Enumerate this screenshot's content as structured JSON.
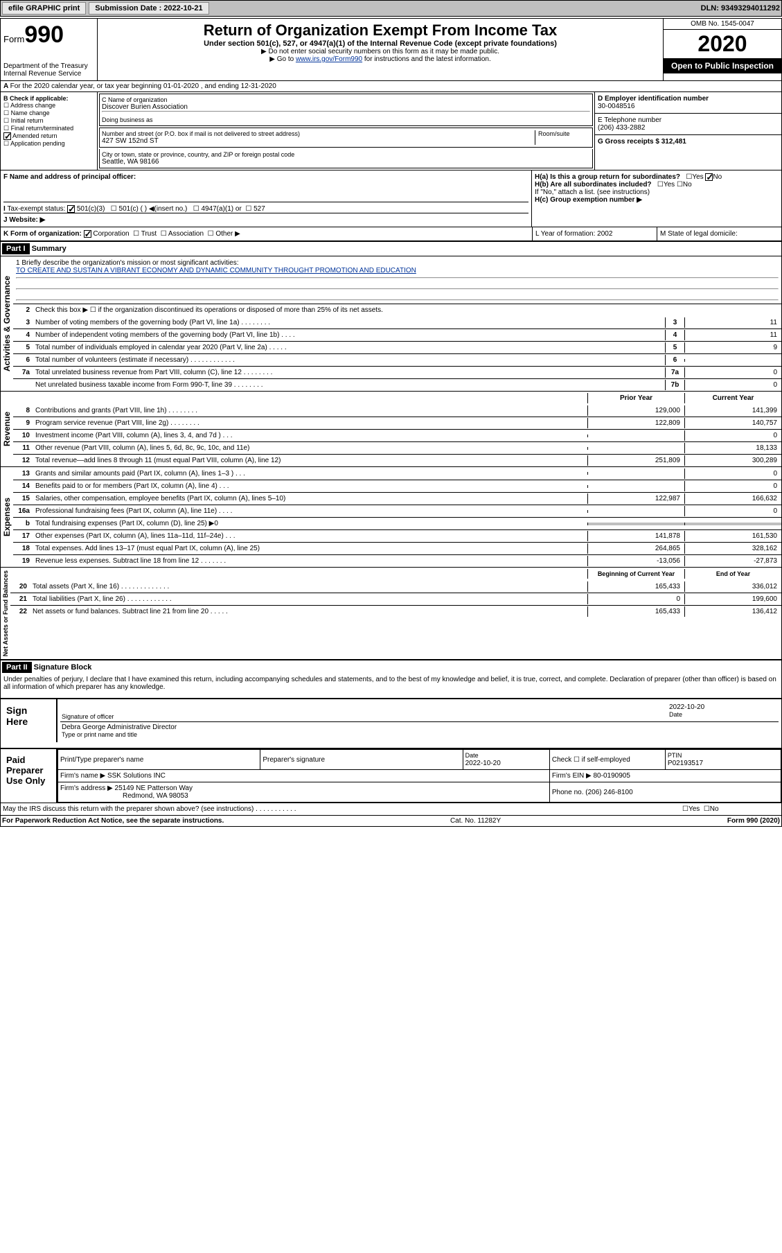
{
  "topbar": {
    "efile": "efile GRAPHIC print",
    "submission_label": "Submission Date : 2022-10-21",
    "dln": "DLN: 93493294011292"
  },
  "header": {
    "form_label": "Form",
    "form_number": "990",
    "dept": "Department of the Treasury",
    "irs": "Internal Revenue Service",
    "title": "Return of Organization Exempt From Income Tax",
    "subtitle": "Under section 501(c), 527, or 4947(a)(1) of the Internal Revenue Code (except private foundations)",
    "note1": "▶ Do not enter social security numbers on this form as it may be made public.",
    "note2_pre": "▶ Go to ",
    "note2_link": "www.irs.gov/Form990",
    "note2_post": " for instructions and the latest information.",
    "omb": "OMB No. 1545-0047",
    "year": "2020",
    "inspect": "Open to Public Inspection"
  },
  "section_a": {
    "tax_year": "For the 2020 calendar year, or tax year beginning 01-01-2020   , and ending 12-31-2020",
    "check_label": "B Check if applicable:",
    "checks": [
      "Address change",
      "Name change",
      "Initial return",
      "Final return/terminated",
      "Amended return",
      "Application pending"
    ],
    "name_label": "C Name of organization",
    "org_name": "Discover Burien Association",
    "dba_label": "Doing business as",
    "addr_label": "Number and street (or P.O. box if mail is not delivered to street address)",
    "room_label": "Room/suite",
    "address": "427 SW 152nd ST",
    "city_label": "City or town, state or province, country, and ZIP or foreign postal code",
    "city": "Seattle, WA  98166",
    "ein_label": "D Employer identification number",
    "ein": "30-0048516",
    "phone_label": "E Telephone number",
    "phone": "(206) 433-2882",
    "gross_label": "G Gross receipts $ 312,481",
    "officer_label": "F  Name and address of principal officer:",
    "ha_label": "H(a)  Is this a group return for subordinates?",
    "hb_label": "H(b)  Are all subordinates included?",
    "hb_note": "If \"No,\" attach a list. (see instructions)",
    "hc_label": "H(c)  Group exemption number ▶",
    "tax_exempt_label": "Tax-exempt status:",
    "tax_501c3": "501(c)(3)",
    "tax_501c": "501(c) (  ) ◀(insert no.)",
    "tax_4947": "4947(a)(1) or",
    "tax_527": "527",
    "website_label": "J  Website: ▶",
    "form_org_label": "K Form of organization:",
    "form_org_opts": [
      "Corporation",
      "Trust",
      "Association",
      "Other ▶"
    ],
    "year_formation_label": "L Year of formation: 2002",
    "state_label": "M State of legal domicile:"
  },
  "part1": {
    "header": "Part I",
    "title": "Summary",
    "q1_label": "1  Briefly describe the organization's mission or most significant activities:",
    "mission": "TO CREATE AND SUSTAIN A VIBRANT ECONOMY AND DYNAMIC COMMUNITY THROUGHT PROMOTION AND EDUCATION",
    "q2": "Check this box ▶ ☐  if the organization discontinued its operations or disposed of more than 25% of its net assets.",
    "vert_gov": "Activities & Governance",
    "vert_rev": "Revenue",
    "vert_exp": "Expenses",
    "vert_net": "Net Assets or Fund Balances",
    "lines_gov": [
      {
        "n": "3",
        "t": "Number of voting members of the governing body (Part VI, line 1a)   .    .    .    .    .    .    .    .",
        "b": "3",
        "v": "11"
      },
      {
        "n": "4",
        "t": "Number of independent voting members of the governing body (Part VI, line 1b)   .    .    .    .",
        "b": "4",
        "v": "11"
      },
      {
        "n": "5",
        "t": "Total number of individuals employed in calendar year 2020 (Part V, line 2a)   .    .    .    .    .",
        "b": "5",
        "v": "9"
      },
      {
        "n": "6",
        "t": "Total number of volunteers (estimate if necessary)   .    .    .    .    .    .    .    .    .    .    .    .",
        "b": "6",
        "v": ""
      },
      {
        "n": "7a",
        "t": "Total unrelated business revenue from Part VIII, column (C), line 12   .    .    .    .    .    .    .    .",
        "b": "7a",
        "v": "0"
      },
      {
        "n": "",
        "t": "Net unrelated business taxable income from Form 990-T, line 39   .    .    .    .    .    .    .    .",
        "b": "7b",
        "v": "0"
      }
    ],
    "col_prior": "Prior Year",
    "col_current": "Current Year",
    "lines_rev": [
      {
        "n": "8",
        "t": "Contributions and grants (Part VIII, line 1h)   .    .    .    .    .    .    .    .",
        "p": "129,000",
        "c": "141,399"
      },
      {
        "n": "9",
        "t": "Program service revenue (Part VIII, line 2g)   .    .    .    .    .    .    .    .",
        "p": "122,809",
        "c": "140,757"
      },
      {
        "n": "10",
        "t": "Investment income (Part VIII, column (A), lines 3, 4, and 7d )   .    .    .",
        "p": "",
        "c": "0"
      },
      {
        "n": "11",
        "t": "Other revenue (Part VIII, column (A), lines 5, 6d, 8c, 9c, 10c, and 11e)",
        "p": "",
        "c": "18,133"
      },
      {
        "n": "12",
        "t": "Total revenue—add lines 8 through 11 (must equal Part VIII, column (A), line 12)",
        "p": "251,809",
        "c": "300,289"
      }
    ],
    "lines_exp": [
      {
        "n": "13",
        "t": "Grants and similar amounts paid (Part IX, column (A), lines 1–3 )   .    .    .",
        "p": "",
        "c": "0"
      },
      {
        "n": "14",
        "t": "Benefits paid to or for members (Part IX, column (A), line 4)   .    .    .",
        "p": "",
        "c": "0"
      },
      {
        "n": "15",
        "t": "Salaries, other compensation, employee benefits (Part IX, column (A), lines 5–10)",
        "p": "122,987",
        "c": "166,632"
      },
      {
        "n": "16a",
        "t": "Professional fundraising fees (Part IX, column (A), line 11e)   .    .    .    .",
        "p": "",
        "c": "0"
      },
      {
        "n": "b",
        "t": "Total fundraising expenses (Part IX, column (D), line 25) ▶0",
        "p": "SHADE",
        "c": "SHADE"
      },
      {
        "n": "17",
        "t": "Other expenses (Part IX, column (A), lines 11a–11d, 11f–24e)   .    .    .",
        "p": "141,878",
        "c": "161,530"
      },
      {
        "n": "18",
        "t": "Total expenses. Add lines 13–17 (must equal Part IX, column (A), line 25)",
        "p": "264,865",
        "c": "328,162"
      },
      {
        "n": "19",
        "t": "Revenue less expenses. Subtract line 18 from line 12   .    .    .    .    .    .    .",
        "p": "-13,056",
        "c": "-27,873"
      }
    ],
    "col_begin": "Beginning of Current Year",
    "col_end": "End of Year",
    "lines_net": [
      {
        "n": "20",
        "t": "Total assets (Part X, line 16)   .    .    .    .    .    .    .    .    .    .    .    .    .",
        "p": "165,433",
        "c": "336,012"
      },
      {
        "n": "21",
        "t": "Total liabilities (Part X, line 26)   .    .    .    .    .    .    .    .    .    .    .    .",
        "p": "0",
        "c": "199,600"
      },
      {
        "n": "22",
        "t": "Net assets or fund balances. Subtract line 21 from line 20   .    .    .    .    .",
        "p": "165,433",
        "c": "136,412"
      }
    ]
  },
  "part2": {
    "header": "Part II",
    "title": "Signature Block",
    "perjury": "Under penalties of perjury, I declare that I have examined this return, including accompanying schedules and statements, and to the best of my knowledge and belief, it is true, correct, and complete. Declaration of preparer (other than officer) is based on all information of which preparer has any knowledge.",
    "sign_here": "Sign Here",
    "sig_officer": "Signature of officer",
    "sig_date": "2022-10-20",
    "date_label": "Date",
    "officer_name": "Debra George  Administrative Director",
    "type_label": "Type or print name and title",
    "paid_prep": "Paid Preparer Use Only",
    "prep_name_label": "Print/Type preparer's name",
    "prep_sig_label": "Preparer's signature",
    "prep_date": "Date\n2022-10-20",
    "prep_check": "Check ☐ if self-employed",
    "ptin_label": "PTIN",
    "ptin": "P02193517",
    "firm_name_label": "Firm's name     ▶",
    "firm_name": "SSK Solutions INC",
    "firm_ein_label": "Firm's EIN ▶",
    "firm_ein": "80-0190905",
    "firm_addr_label": "Firm's address ▶",
    "firm_addr": "25149 NE Patterson Way",
    "firm_city": "Redmond, WA  98053",
    "firm_phone_label": "Phone no.",
    "firm_phone": "(206) 246-8100",
    "discuss": "May the IRS discuss this return with the preparer shown above? (see instructions)    .    .    .    .    .    .    .    .    .    .    ."
  },
  "footer": {
    "left": "For Paperwork Reduction Act Notice, see the separate instructions.",
    "center": "Cat. No. 11282Y",
    "right": "Form 990 (2020)"
  }
}
